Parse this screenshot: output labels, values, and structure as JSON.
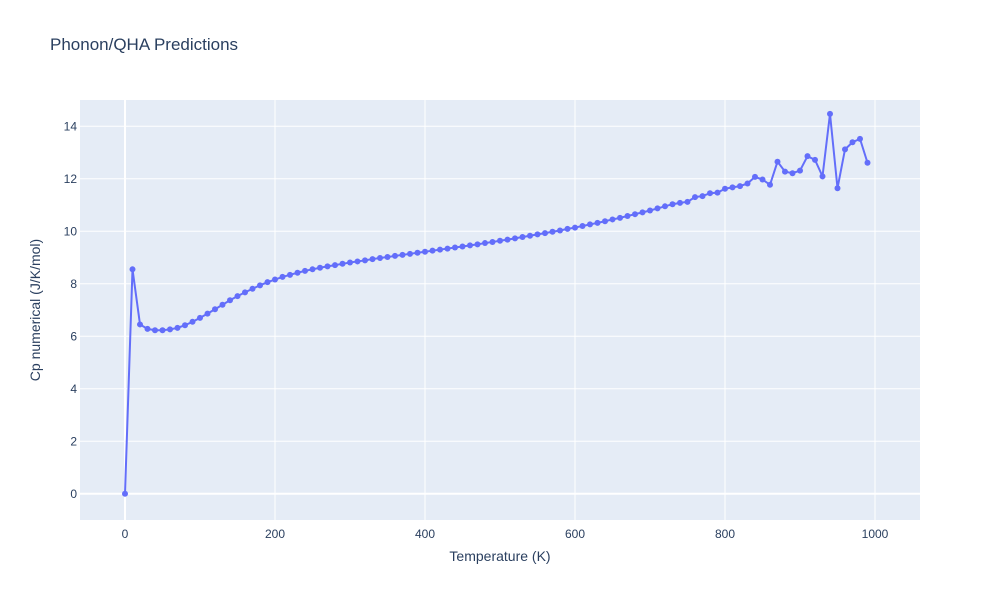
{
  "chart_data": {
    "type": "line",
    "title": "Phonon/QHA Predictions",
    "xlabel": "Temperature (K)",
    "ylabel": "Cp numerical (J/K/mol)",
    "xlim": [
      -60,
      1060
    ],
    "ylim": [
      -1,
      15
    ],
    "x_ticks": [
      0,
      200,
      400,
      600,
      800,
      1000
    ],
    "y_ticks": [
      0,
      2,
      4,
      6,
      8,
      10,
      12,
      14
    ],
    "grid": true,
    "legend": "none",
    "colors": {
      "line": "#636efa",
      "plot_bg": "#e5ecf6",
      "grid": "#ffffff",
      "text": "#2a3f5f"
    },
    "series": [
      {
        "x": [
          0,
          10,
          20,
          30,
          40,
          50,
          60,
          70,
          80,
          90,
          100,
          110,
          120,
          130,
          140,
          150,
          160,
          170,
          180,
          190,
          200,
          210,
          220,
          230,
          240,
          250,
          260,
          270,
          280,
          290,
          300,
          310,
          320,
          330,
          340,
          350,
          360,
          370,
          380,
          390,
          400,
          410,
          420,
          430,
          440,
          450,
          460,
          470,
          480,
          490,
          500,
          510,
          520,
          530,
          540,
          550,
          560,
          570,
          580,
          590,
          600,
          610,
          620,
          630,
          640,
          650,
          660,
          670,
          680,
          690,
          700,
          710,
          720,
          730,
          740,
          750,
          760,
          770,
          780,
          790,
          800,
          810,
          820,
          830,
          840,
          850,
          860,
          870,
          880,
          890,
          900,
          910,
          920,
          930,
          940,
          950,
          960,
          970,
          980,
          990
        ],
        "y": [
          0.0,
          8.55,
          6.45,
          6.28,
          6.23,
          6.23,
          6.26,
          6.32,
          6.42,
          6.55,
          6.7,
          6.86,
          7.03,
          7.2,
          7.37,
          7.53,
          7.67,
          7.81,
          7.94,
          8.06,
          8.16,
          8.26,
          8.34,
          8.42,
          8.49,
          8.55,
          8.61,
          8.66,
          8.71,
          8.76,
          8.81,
          8.85,
          8.89,
          8.94,
          8.98,
          9.02,
          9.06,
          9.1,
          9.14,
          9.18,
          9.22,
          9.26,
          9.3,
          9.34,
          9.38,
          9.42,
          9.46,
          9.5,
          9.55,
          9.59,
          9.64,
          9.68,
          9.73,
          9.78,
          9.83,
          9.88,
          9.93,
          9.98,
          10.03,
          10.09,
          10.14,
          10.2,
          10.26,
          10.32,
          10.38,
          10.45,
          10.51,
          10.58,
          10.65,
          10.72,
          10.79,
          10.87,
          10.95,
          11.03,
          11.08,
          11.12,
          11.3,
          11.34,
          11.45,
          11.47,
          11.62,
          11.67,
          11.72,
          11.82,
          12.07,
          11.97,
          11.77,
          12.65,
          12.27,
          12.21,
          12.31,
          12.86,
          12.72,
          12.09,
          14.47,
          11.64,
          13.12,
          13.39,
          13.52,
          12.61
        ]
      }
    ]
  }
}
